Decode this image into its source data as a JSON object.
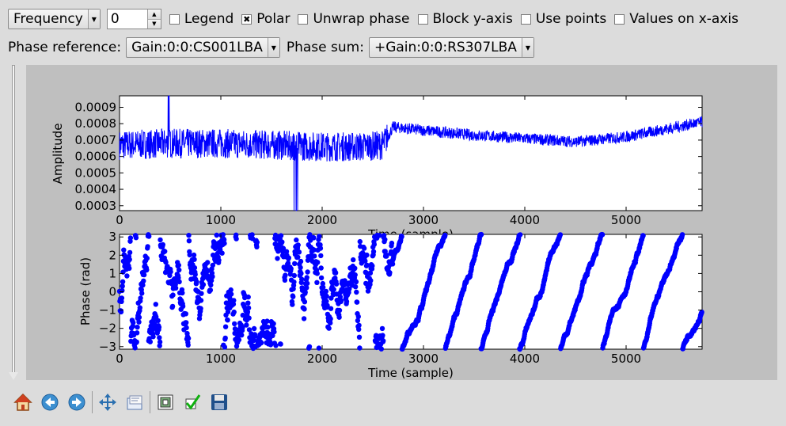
{
  "toolbar_top": {
    "mode_select": "Frequency",
    "spin_value": "0",
    "checkboxes": [
      {
        "label": "Legend",
        "checked": false
      },
      {
        "label": "Polar",
        "checked": true
      },
      {
        "label": "Unwrap phase",
        "checked": false
      },
      {
        "label": "Block y-axis",
        "checked": false
      },
      {
        "label": "Use points",
        "checked": false
      },
      {
        "label": "Values on x-axis",
        "checked": false
      }
    ]
  },
  "phase_row": {
    "reference_label": "Phase reference:",
    "reference_value": "Gain:0:0:CS001LBA",
    "sum_label": "Phase sum:",
    "sum_value": "+Gain:0:0:RS307LBA"
  },
  "chart_data": [
    {
      "type": "line",
      "xlabel": "Time (sample)",
      "ylabel": "Amplitude",
      "xlim": [
        0,
        5750
      ],
      "ylim": [
        0.00027,
        0.00097
      ],
      "xticks": [
        "0",
        "1000",
        "2000",
        "3000",
        "4000",
        "5000"
      ],
      "yticks": [
        "0.0003",
        "0.0004",
        "0.0005",
        "0.0006",
        "0.0007",
        "0.0008",
        "0.0009"
      ],
      "color": "#0000ff",
      "trend": {
        "x": [
          0,
          500,
          1000,
          1500,
          2000,
          2400,
          2600,
          2700,
          3000,
          3500,
          4000,
          4500,
          5000,
          5500,
          5750
        ],
        "y": [
          0.00067,
          0.00068,
          0.00068,
          0.00067,
          0.00066,
          0.00066,
          0.00067,
          0.00078,
          0.00076,
          0.00073,
          0.00071,
          0.00069,
          0.00072,
          0.00078,
          0.00081
        ]
      }
    },
    {
      "type": "scatter",
      "xlabel": "Time (sample)",
      "ylabel": "Phase (rad)",
      "xlim": [
        0,
        5750
      ],
      "ylim": [
        -3.14,
        3.14
      ],
      "xticks": [
        "0",
        "1000",
        "2000",
        "3000",
        "4000",
        "5000"
      ],
      "yticks": [
        "3",
        "2",
        "1",
        "0",
        "−1",
        "−2",
        "−3"
      ],
      "color": "#0000ff"
    }
  ],
  "icons": [
    "home-icon",
    "back-icon",
    "forward-icon",
    "pan-icon",
    "zoom-icon",
    "configure-subplots-icon",
    "edit-check-icon",
    "save-icon"
  ]
}
